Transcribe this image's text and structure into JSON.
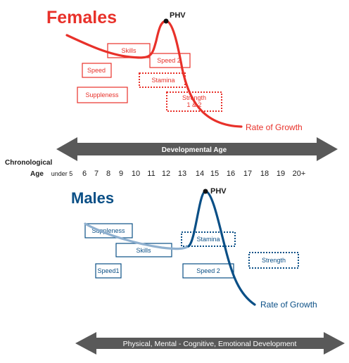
{
  "colors": {
    "female": "#e8312a",
    "male": "#0a4f86",
    "arrow": "#595959",
    "text": "#1a1a1a"
  },
  "females": {
    "title": "Females",
    "phv": "PHV",
    "rate": "Rate of Growth",
    "boxes": {
      "skills": "Skills",
      "speed2": "Speed 2",
      "speed": "Speed",
      "stamina": "Stamina",
      "suppleness": "Suppleness",
      "strength_line1": "Strength",
      "strength_line2": "1 & 2"
    }
  },
  "age_axis": {
    "arrow_label": "Developmental Age",
    "label_top": "Chronological",
    "label_bottom": "Age",
    "ticks": [
      "under 5",
      "6",
      "7",
      "8",
      "9",
      "10",
      "11",
      "12",
      "13",
      "14",
      "15",
      "16",
      "17",
      "18",
      "19",
      "20+"
    ]
  },
  "males": {
    "title": "Males",
    "phv": "PHV",
    "rate": "Rate of Growth",
    "boxes": {
      "suppleness": "Suppleness",
      "skills": "Skills",
      "stamina": "Stamina",
      "strength": "Strength",
      "speed1": "Speed1",
      "speed2": "Speed 2"
    }
  },
  "bottom_arrow": {
    "label": "Physical, Mental - Cognitive, Emotional Development"
  }
}
